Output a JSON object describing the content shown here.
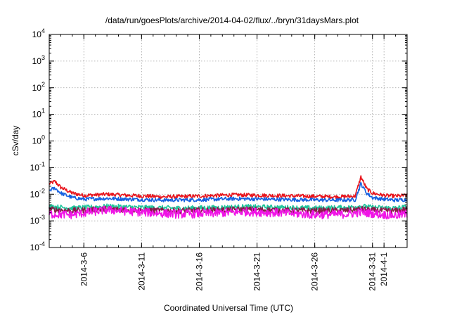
{
  "chart_data": {
    "type": "line",
    "title": "/data/run/goesPlots/archive/2014-04-02/flux/../bryn/31daysMars.plot",
    "xlabel": "Coordinated Universal Time (UTC)",
    "ylabel": "cSv/day",
    "yscale": "log",
    "ylim": [
      0.0001,
      10000
    ],
    "y_ticks": [
      {
        "base": "10",
        "exp": "4",
        "value": 10000
      },
      {
        "base": "10",
        "exp": "3",
        "value": 1000
      },
      {
        "base": "10",
        "exp": "2",
        "value": 100
      },
      {
        "base": "10",
        "exp": "1",
        "value": 10
      },
      {
        "base": "10",
        "exp": "0",
        "value": 1
      },
      {
        "base": "10",
        "exp": "-1",
        "value": 0.1
      },
      {
        "base": "10",
        "exp": "-2",
        "value": 0.01
      },
      {
        "base": "10",
        "exp": "-3",
        "value": 0.001
      },
      {
        "base": "10",
        "exp": "-4",
        "value": 0.0001
      }
    ],
    "xlim": [
      "2014-03-03",
      "2014-04-03"
    ],
    "x_ticks": [
      "2014-3-6",
      "2014-3-11",
      "2014-3-16",
      "2014-3-21",
      "2014-3-26",
      "2014-3-31",
      "2014-4-1"
    ],
    "grid": true,
    "legend": "none",
    "series": [
      {
        "color": "#e8141c",
        "x": [
          "2014-03-03",
          "2014-03-03.5",
          "2014-03-04",
          "2014-03-05",
          "2014-03-06",
          "2014-03-08",
          "2014-03-10",
          "2014-03-13",
          "2014-03-16",
          "2014-03-19",
          "2014-03-22",
          "2014-03-25",
          "2014-03-28",
          "2014-03-29.5",
          "2014-03-30",
          "2014-03-30.5",
          "2014-03-31",
          "2014-04-01",
          "2014-04-02",
          "2014-04-03"
        ],
        "values": [
          0.025,
          0.03,
          0.018,
          0.011,
          0.009,
          0.01,
          0.009,
          0.008,
          0.0085,
          0.0095,
          0.009,
          0.0085,
          0.008,
          0.0085,
          0.045,
          0.016,
          0.011,
          0.009,
          0.0085,
          0.009
        ]
      },
      {
        "color": "#1560e0",
        "x": [
          "2014-03-03",
          "2014-03-03.5",
          "2014-03-04",
          "2014-03-05",
          "2014-03-06",
          "2014-03-08",
          "2014-03-10",
          "2014-03-13",
          "2014-03-16",
          "2014-03-19",
          "2014-03-22",
          "2014-03-25",
          "2014-03-28",
          "2014-03-29.5",
          "2014-03-30",
          "2014-03-30.5",
          "2014-03-31",
          "2014-04-01",
          "2014-04-02",
          "2014-04-03"
        ],
        "values": [
          0.014,
          0.017,
          0.011,
          0.0075,
          0.0065,
          0.007,
          0.0065,
          0.006,
          0.0062,
          0.0068,
          0.0065,
          0.0062,
          0.006,
          0.0062,
          0.025,
          0.011,
          0.0075,
          0.0065,
          0.006,
          0.0063
        ]
      },
      {
        "color": "#1fc49a",
        "x": [
          "2014-03-03",
          "2014-03-05",
          "2014-03-08",
          "2014-03-11",
          "2014-03-14",
          "2014-03-17",
          "2014-03-20",
          "2014-03-23",
          "2014-03-26",
          "2014-03-29",
          "2014-03-30",
          "2014-03-31",
          "2014-04-01",
          "2014-04-02",
          "2014-04-03"
        ],
        "values": [
          0.0035,
          0.003,
          0.0035,
          0.0032,
          0.003,
          0.0031,
          0.0034,
          0.0032,
          0.003,
          0.0032,
          0.0036,
          0.0032,
          0.0031,
          0.003,
          0.0034
        ]
      },
      {
        "color": "#8a1a4a",
        "x": [
          "2014-03-03",
          "2014-03-05",
          "2014-03-08",
          "2014-03-11",
          "2014-03-14",
          "2014-03-17",
          "2014-03-20",
          "2014-03-23",
          "2014-03-26",
          "2014-03-29",
          "2014-03-30",
          "2014-03-31",
          "2014-04-01",
          "2014-04-02",
          "2014-04-03"
        ],
        "values": [
          0.0027,
          0.0024,
          0.0028,
          0.0025,
          0.0024,
          0.0025,
          0.0027,
          0.0025,
          0.0024,
          0.0025,
          0.0028,
          0.0025,
          0.0024,
          0.0024,
          0.0027
        ]
      },
      {
        "color": "#f014e6",
        "x": [
          "2014-03-03",
          "2014-03-05",
          "2014-03-08",
          "2014-03-11",
          "2014-03-14",
          "2014-03-17",
          "2014-03-20",
          "2014-03-23",
          "2014-03-26",
          "2014-03-29",
          "2014-03-30",
          "2014-03-31",
          "2014-04-01",
          "2014-04-02",
          "2014-04-03"
        ],
        "values": [
          0.0018,
          0.0017,
          0.0026,
          0.0021,
          0.0018,
          0.0019,
          0.0022,
          0.002,
          0.0017,
          0.0018,
          0.0021,
          0.0019,
          0.0017,
          0.0016,
          0.0018
        ]
      }
    ]
  }
}
